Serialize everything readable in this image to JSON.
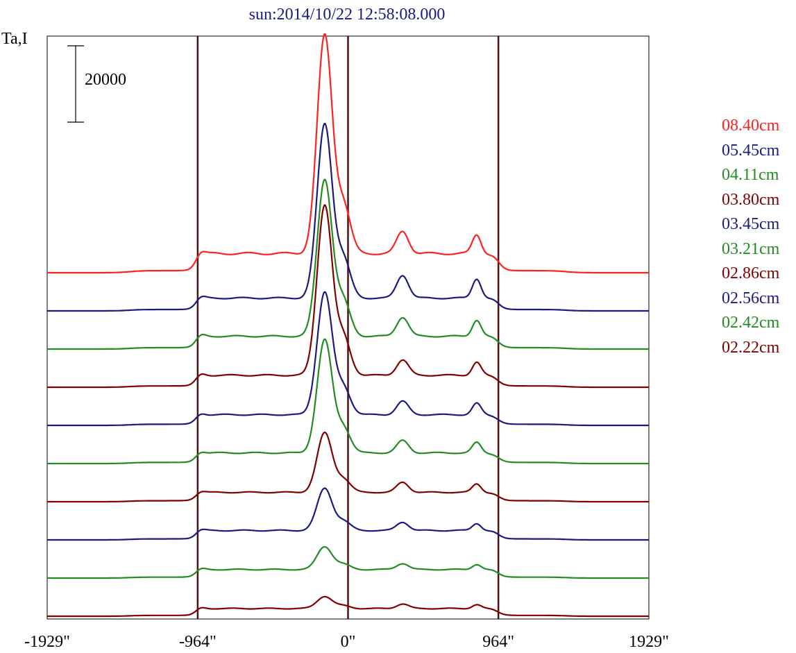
{
  "chart_data": {
    "type": "line",
    "title": "sun:2014/10/22 12:58:08.000",
    "ylabel": "Ta,I",
    "scale_bar_label": "20000",
    "scale_bar_value": 20000,
    "xlabel": "",
    "xlim": [
      -1929,
      1929
    ],
    "x_ticks": [
      {
        "value": -1929,
        "label": "-1929\""
      },
      {
        "value": -964,
        "label": "-964\""
      },
      {
        "value": 0,
        "label": "0\""
      },
      {
        "value": 964,
        "label": "964\""
      },
      {
        "value": 1929,
        "label": "1929\""
      }
    ],
    "vertical_lines": [
      -964,
      0,
      964
    ],
    "legend_position": "right",
    "layout": "stacked-offset",
    "series": [
      {
        "name": "08.40cm",
        "color": "#ff2020",
        "baseline": 90000,
        "peak": 57000,
        "active": 5800,
        "limb": 4500
      },
      {
        "name": "05.45cm",
        "color": "#1a1a80",
        "baseline": 80000,
        "peak": 45500,
        "active": 6000,
        "limb": 3000
      },
      {
        "name": "04.11cm",
        "color": "#228b22",
        "baseline": 70000,
        "peak": 41000,
        "active": 5000,
        "limb": 3000
      },
      {
        "name": "03.80cm",
        "color": "#800000",
        "baseline": 60000,
        "peak": 44500,
        "active": 4000,
        "limb": 2800
      },
      {
        "name": "03.45cm",
        "color": "#1a1a80",
        "baseline": 50000,
        "peak": 32000,
        "active": 3500,
        "limb": 2500
      },
      {
        "name": "03.21cm",
        "color": "#228b22",
        "baseline": 40000,
        "peak": 29500,
        "active": 3200,
        "limb": 2500
      },
      {
        "name": "02.86cm",
        "color": "#800000",
        "baseline": 30000,
        "peak": 15500,
        "active": 2600,
        "limb": 2200
      },
      {
        "name": "02.56cm",
        "color": "#1a1a80",
        "baseline": 20000,
        "peak": 11000,
        "active": 2200,
        "limb": 2200
      },
      {
        "name": "02.42cm",
        "color": "#228b22",
        "baseline": 10000,
        "peak": 6000,
        "active": 1600,
        "limb": 2000
      },
      {
        "name": "02.22cm",
        "color": "#800000",
        "baseline": 0,
        "peak": 3200,
        "active": 1200,
        "limb": 1800
      }
    ]
  }
}
